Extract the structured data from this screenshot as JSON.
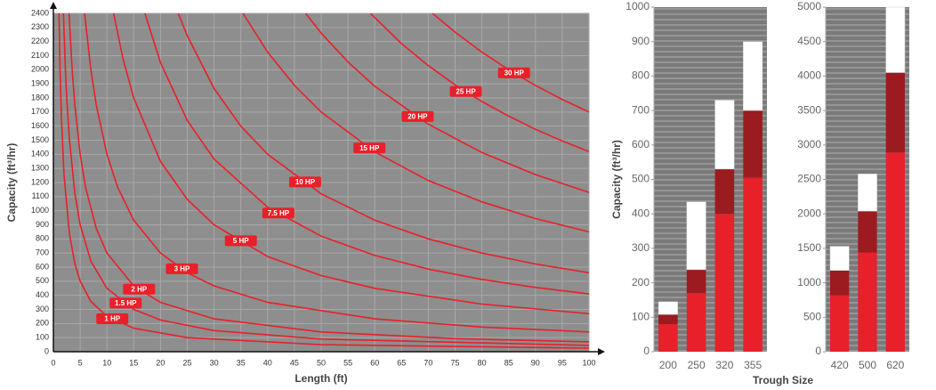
{
  "chart_data": [
    {
      "type": "line",
      "x_label": "Length (ft)",
      "y_label": "Capacity (ft³/hr)",
      "xlim": [
        0,
        100
      ],
      "ylim": [
        0,
        2400
      ],
      "xticks": [
        0,
        5,
        10,
        15,
        20,
        25,
        30,
        35,
        40,
        45,
        50,
        55,
        60,
        65,
        70,
        75,
        80,
        85,
        90,
        95,
        100
      ],
      "yticks": [
        0,
        100,
        200,
        300,
        400,
        500,
        600,
        700,
        800,
        900,
        1000,
        1100,
        1200,
        1300,
        1400,
        1500,
        1600,
        1700,
        1800,
        1900,
        2000,
        2100,
        2200,
        2300,
        2400
      ],
      "grid": true,
      "series": [
        {
          "name": "1 HP",
          "color": "#e8202a",
          "x": [
            1.04,
            1.25,
            1.5,
            2,
            3,
            4,
            5,
            7,
            10,
            15,
            25,
            50,
            100
          ],
          "values": [
            2400,
            2000,
            1667,
            1250,
            833,
            625,
            500,
            357,
            250,
            167,
            100,
            50,
            25
          ]
        },
        {
          "name": "1.5 HP",
          "color": "#e8202a",
          "x": [
            1.875,
            2.25,
            2.5,
            3,
            4,
            5,
            7,
            10,
            15,
            20,
            30,
            50,
            100
          ],
          "values": [
            2400,
            2000,
            1800,
            1500,
            1125,
            900,
            643,
            450,
            300,
            225,
            150,
            90,
            45
          ]
        },
        {
          "name": "2 HP",
          "color": "#e8202a",
          "x": [
            2.92,
            3.5,
            4,
            5,
            6,
            8,
            10,
            15,
            20,
            30,
            50,
            75,
            100
          ],
          "values": [
            2400,
            2000,
            1750,
            1400,
            1167,
            875,
            700,
            467,
            350,
            233,
            140,
            93,
            70
          ]
        },
        {
          "name": "3 HP",
          "color": "#e8202a",
          "x": [
            5.83,
            7,
            8,
            10,
            12,
            15,
            20,
            25,
            30,
            40,
            60,
            80,
            100
          ],
          "values": [
            2400,
            2000,
            1750,
            1400,
            1167,
            933,
            700,
            560,
            467,
            350,
            233,
            175,
            140
          ]
        },
        {
          "name": "5 HP",
          "color": "#e8202a",
          "x": [
            11.25,
            13,
            15,
            20,
            25,
            30,
            40,
            50,
            60,
            80,
            100
          ],
          "values": [
            2400,
            2077,
            1800,
            1350,
            1080,
            900,
            675,
            540,
            450,
            338,
            270
          ]
        },
        {
          "name": "7.5 HP",
          "color": "#e8202a",
          "x": [
            17.1,
            20,
            25,
            30,
            40,
            50,
            60,
            70,
            80,
            90,
            100
          ],
          "values": [
            2400,
            2050,
            1640,
            1367,
            1025,
            820,
            683,
            586,
            513,
            456,
            410
          ]
        },
        {
          "name": "10 HP",
          "color": "#e8202a",
          "x": [
            23.3,
            25,
            30,
            35,
            40,
            50,
            60,
            70,
            80,
            90,
            100
          ],
          "values": [
            2400,
            2240,
            1867,
            1600,
            1400,
            1120,
            933,
            800,
            700,
            622,
            560
          ]
        },
        {
          "name": "15 HP",
          "color": "#e8202a",
          "x": [
            35.4,
            40,
            45,
            50,
            60,
            70,
            80,
            90,
            100
          ],
          "values": [
            2400,
            2125,
            1889,
            1700,
            1417,
            1214,
            1063,
            944,
            850
          ]
        },
        {
          "name": "20 HP",
          "color": "#e8202a",
          "x": [
            47.1,
            50,
            55,
            60,
            70,
            80,
            90,
            100
          ],
          "values": [
            2400,
            2260,
            2055,
            1883,
            1614,
            1413,
            1256,
            1130
          ]
        },
        {
          "name": "25 HP",
          "color": "#e8202a",
          "x": [
            59.2,
            65,
            70,
            75,
            80,
            85,
            90,
            95,
            100
          ],
          "values": [
            2400,
            2185,
            2029,
            1893,
            1775,
            1671,
            1578,
            1495,
            1420
          ]
        },
        {
          "name": "30 HP",
          "color": "#e8202a",
          "x": [
            70.8,
            75,
            80,
            85,
            90,
            95,
            100
          ],
          "values": [
            2400,
            2267,
            2125,
            2000,
            1889,
            1789,
            1700
          ]
        }
      ]
    },
    {
      "type": "bar",
      "stacked": true,
      "y_label": "Capacity (ft³/hr)",
      "categories": [
        "200",
        "250",
        "320",
        "355"
      ],
      "ylim": [
        0,
        1000
      ],
      "yticks": [
        0,
        100,
        200,
        300,
        400,
        500,
        600,
        700,
        800,
        900,
        1000
      ],
      "series": [
        {
          "color": "#e8202a",
          "values": [
            80,
            170,
            400,
            505
          ]
        },
        {
          "color": "#9b1b20",
          "values": [
            28,
            68,
            130,
            195
          ]
        },
        {
          "color": "#ffffff",
          "values": [
            37,
            197,
            200,
            200
          ]
        }
      ]
    },
    {
      "type": "bar",
      "stacked": true,
      "x_label": "Trough Size",
      "categories": [
        "420",
        "500",
        "620"
      ],
      "ylim": [
        0,
        5000
      ],
      "yticks": [
        0,
        500,
        1000,
        1500,
        2000,
        2500,
        3000,
        3500,
        4000,
        4500,
        5000
      ],
      "series": [
        {
          "color": "#e8202a",
          "values": [
            820,
            1440,
            2890
          ]
        },
        {
          "color": "#9b1b20",
          "values": [
            360,
            600,
            1160
          ]
        },
        {
          "color": "#ffffff",
          "values": [
            350,
            540,
            950
          ]
        }
      ]
    }
  ]
}
